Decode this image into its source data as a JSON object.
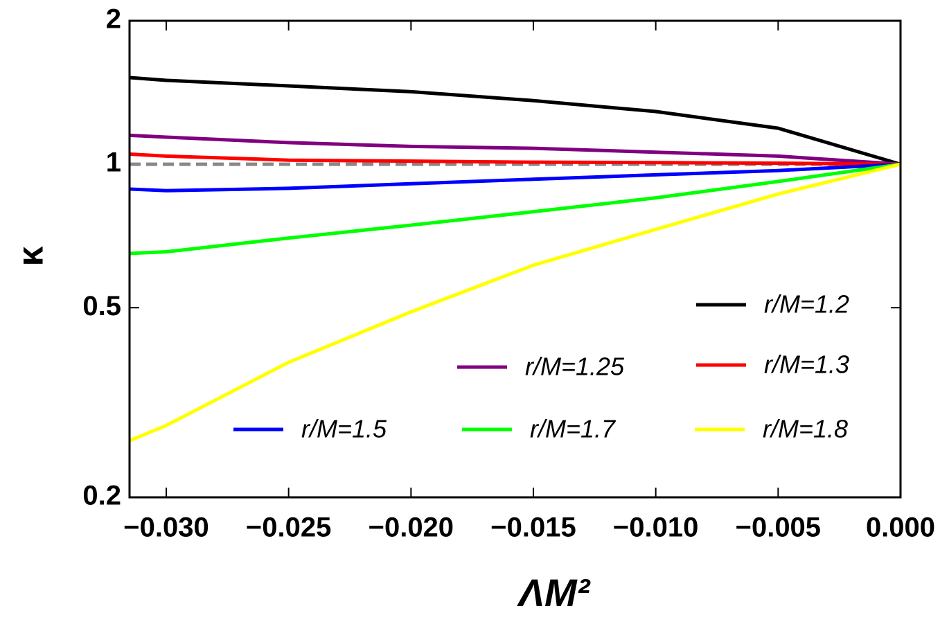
{
  "chart_data": {
    "type": "line",
    "xlabel": "ΛM²",
    "ylabel": "κ",
    "xlim": [
      -0.0315,
      0
    ],
    "ylim": [
      0.2,
      2
    ],
    "yscale": "log",
    "xticks": [
      {
        "value": -0.03,
        "label": "−0.030"
      },
      {
        "value": -0.025,
        "label": "−0.025"
      },
      {
        "value": -0.02,
        "label": "−0.020"
      },
      {
        "value": -0.015,
        "label": "−0.015"
      },
      {
        "value": -0.01,
        "label": "−0.010"
      },
      {
        "value": -0.005,
        "label": "−0.005"
      },
      {
        "value": 0,
        "label": "0.000"
      }
    ],
    "yticks": [
      0.2,
      0.5,
      1,
      2
    ],
    "hline": {
      "value": 1,
      "color": "#888888"
    },
    "x": [
      -0.0315,
      -0.03,
      -0.025,
      -0.02,
      -0.015,
      -0.01,
      -0.005,
      0
    ],
    "series": [
      {
        "name": "r/M=1.2",
        "color": "#000000",
        "values": [
          1.52,
          1.5,
          1.46,
          1.42,
          1.36,
          1.29,
          1.19,
          1.0
        ]
      },
      {
        "name": "r/M=1.25",
        "color": "#800080",
        "values": [
          1.15,
          1.14,
          1.11,
          1.09,
          1.08,
          1.06,
          1.04,
          1.0
        ]
      },
      {
        "name": "r/M=1.3",
        "color": "#ff0000",
        "values": [
          1.05,
          1.04,
          1.02,
          1.015,
          1.01,
          1.008,
          1.005,
          1.0
        ]
      },
      {
        "name": "r/M=1.5",
        "color": "#0000ff",
        "values": [
          0.887,
          0.88,
          0.89,
          0.91,
          0.93,
          0.95,
          0.97,
          1.0
        ]
      },
      {
        "name": "r/M=1.7",
        "color": "#00ff00",
        "values": [
          0.65,
          0.655,
          0.7,
          0.745,
          0.795,
          0.85,
          0.92,
          1.0
        ]
      },
      {
        "name": "r/M=1.8",
        "color": "#ffff00",
        "values": [
          0.263,
          0.283,
          0.384,
          0.49,
          0.614,
          0.73,
          0.866,
          1.0
        ]
      }
    ]
  }
}
